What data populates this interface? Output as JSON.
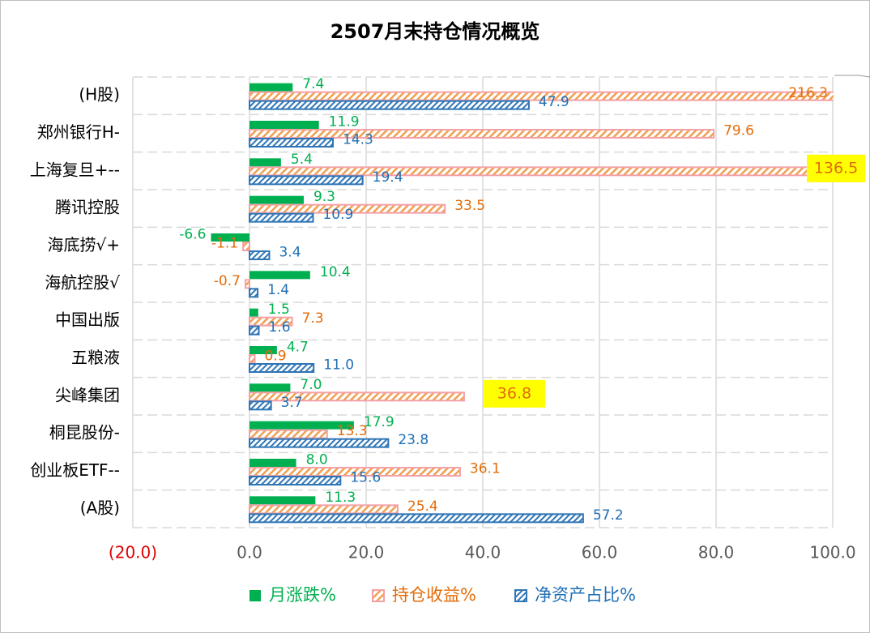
{
  "chart_data": {
    "type": "bar",
    "orientation": "horizontal",
    "title": "2507月末持仓情况概览",
    "categories": [
      "(H股)",
      "郑州银行H-",
      "上海复旦+--",
      "腾讯控股",
      "海底捞√+",
      "海航控股√",
      "中国出版",
      "五粮液",
      "尖峰集团",
      "桐昆股份-",
      "创业板ETF--",
      "(A股)"
    ],
    "series": [
      {
        "name": "月涨跌%",
        "color": "#00b050",
        "label_color": "#00b050",
        "pattern": "solid",
        "values": [
          7.4,
          11.9,
          5.4,
          9.3,
          -6.6,
          10.4,
          1.5,
          4.7,
          7.0,
          17.9,
          8.0,
          11.3
        ],
        "value_labels": [
          "7.4",
          "11.9",
          "5.4",
          "9.3",
          "-6.6",
          "10.4",
          "1.5",
          "4.7",
          "7.0",
          "17.9",
          "8.0",
          "11.3"
        ]
      },
      {
        "name": "持仓收益%",
        "color": "#f4a0a8",
        "label_color": "#e36c09",
        "pattern": "hatch",
        "values": [
          216.3,
          79.6,
          136.5,
          33.5,
          -1.1,
          -0.7,
          7.3,
          0.9,
          36.8,
          13.3,
          36.1,
          25.4
        ],
        "value_labels": [
          "216.3",
          "79.6",
          "136.5",
          "33.5",
          "-1.1",
          "-0.7",
          "7.3",
          "0.9",
          "36.8",
          "13.3",
          "36.1",
          "25.4"
        ]
      },
      {
        "name": "净资产占比%",
        "color": "#2e75b6",
        "label_color": "#1f6fb5",
        "pattern": "hatch",
        "values": [
          47.9,
          14.3,
          19.4,
          10.9,
          3.4,
          1.4,
          1.6,
          11.0,
          3.7,
          23.8,
          15.6,
          57.2
        ],
        "value_labels": [
          "47.9",
          "14.3",
          "19.4",
          "10.9",
          "3.4",
          "1.4",
          "1.6",
          "11.0",
          "3.7",
          "23.8",
          "15.6",
          "57.2"
        ]
      }
    ],
    "xlim": [
      -20,
      100
    ],
    "xticks": [
      {
        "value": -20,
        "label": "(20.0)"
      },
      {
        "value": 0,
        "label": "0.0"
      },
      {
        "value": 20,
        "label": "20.0"
      },
      {
        "value": 40,
        "label": "40.0"
      },
      {
        "value": 60,
        "label": "60.0"
      },
      {
        "value": 80,
        "label": "80.0"
      },
      {
        "value": 100,
        "label": "100.0"
      }
    ],
    "negative_tick_color": "#e00000",
    "grid": true,
    "legend": "bottom",
    "highlight": {
      "color": "#ffff00",
      "series": 1,
      "indices": [
        2,
        8
      ]
    }
  }
}
